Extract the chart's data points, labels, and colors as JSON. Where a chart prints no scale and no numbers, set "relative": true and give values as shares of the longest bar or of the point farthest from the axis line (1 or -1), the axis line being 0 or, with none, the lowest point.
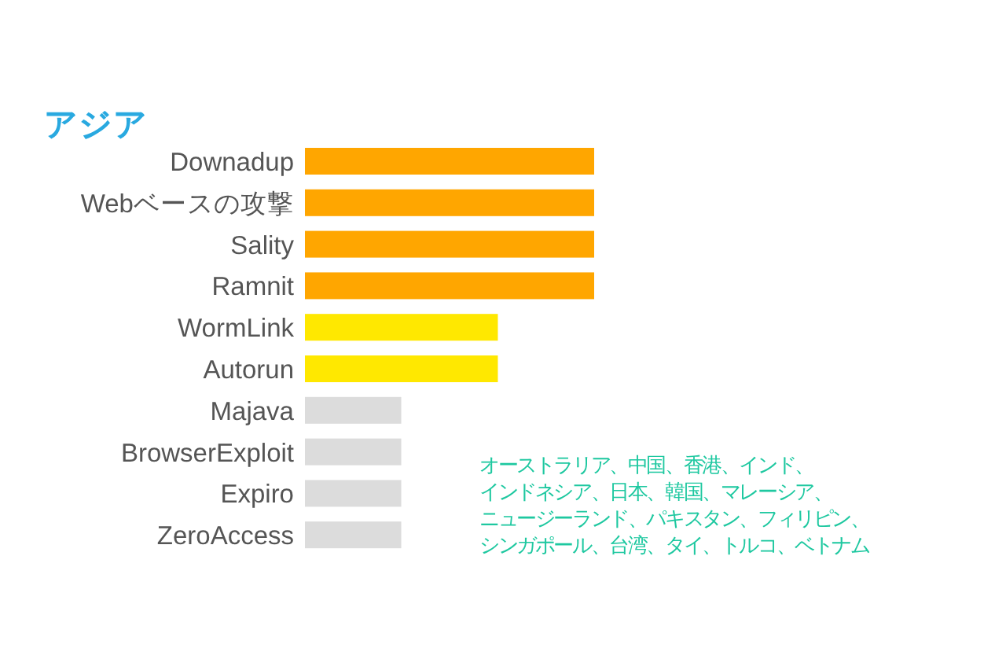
{
  "chart_data": {
    "type": "bar",
    "orientation": "horizontal",
    "relative": true,
    "title": "アジア",
    "categories": [
      "Downadup",
      "Webベースの攻撃",
      "Sality",
      "Ramnit",
      "WormLink",
      "Autorun",
      "Majava",
      "BrowserExploit",
      "Expiro",
      "ZeroAccess"
    ],
    "values": [
      1,
      1,
      1,
      1,
      0.667,
      0.667,
      0.333,
      0.333,
      0.333,
      0.333
    ],
    "colors": [
      "#ffa600",
      "#ffa600",
      "#ffa600",
      "#ffa600",
      "#ffe800",
      "#ffe800",
      "#dcdcdc",
      "#dcdcdc",
      "#dcdcdc",
      "#dcdcdc"
    ],
    "annotations": [
      "オーストラリア、中国、香港、インド、",
      "インドネシア、日本、韓国、マレーシア、",
      "ニュージーランド、パキスタン、フィリピン、",
      "シンガポール、台湾、タイ、トルコ、ベトナム"
    ]
  }
}
